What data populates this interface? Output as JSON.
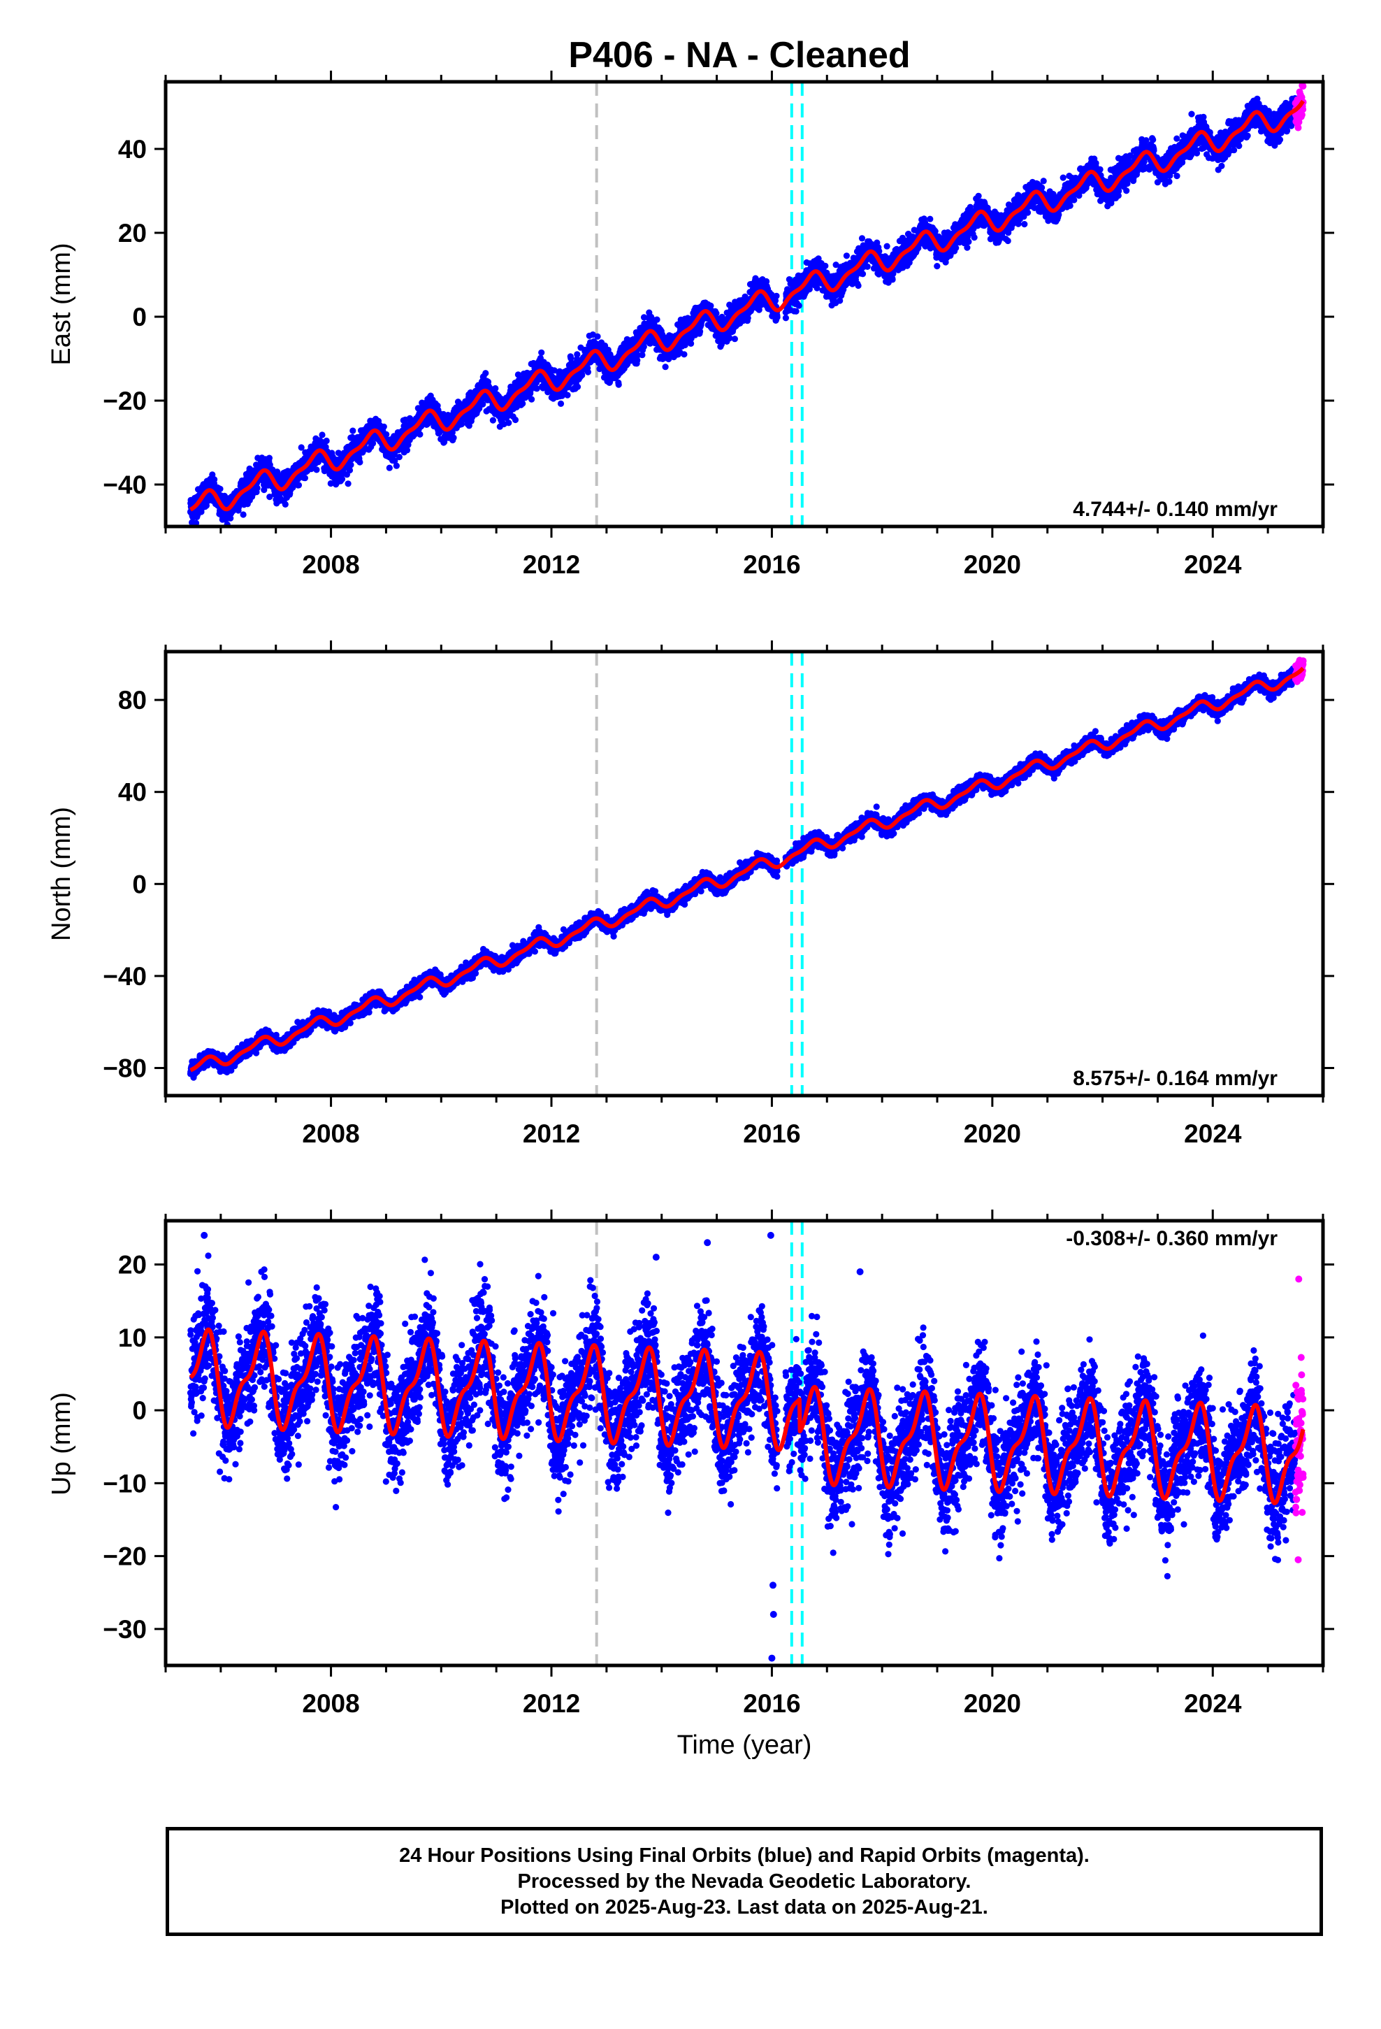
{
  "title": "P406  - NA - Cleaned",
  "xlabel": "Time (year)",
  "footer": {
    "line1": "24 Hour Positions Using Final Orbits (blue) and Rapid Orbits (magenta).",
    "line2": "Processed by the Nevada Geodetic Laboratory.",
    "line3": "Plotted on 2025-Aug-23. Last data on 2025-Aug-21."
  },
  "colors": {
    "final_orbits": "#0000ff",
    "rapid_orbits": "#ff00ff",
    "model": "#ff0000",
    "event_gray": "#c0c0c0",
    "event_cyan": "#00ffff"
  },
  "chart_data": [
    {
      "type": "scatter",
      "ylabel": "East (mm)",
      "xlim": [
        2005.0,
        2026.0
      ],
      "ylim": [
        -50,
        56
      ],
      "x_ticks": [
        2008,
        2012,
        2016,
        2020,
        2024
      ],
      "y_ticks": [
        -40,
        -20,
        0,
        20,
        40
      ],
      "rate_text": "4.744+/- 0.140 mm/yr",
      "rate_position": "bottom-right",
      "data_start": 2005.45,
      "data_end": 2025.64,
      "rapid_start": 2025.5,
      "trend": {
        "intercept_at_start": -46,
        "slope_mm_per_yr": 4.744
      },
      "seasonal_amplitude": 2.5,
      "scatter_sd": 1.6,
      "vertical_lines": [
        {
          "x": 2012.82,
          "color": "gray",
          "style": "dashed"
        },
        {
          "x": 2016.36,
          "color": "cyan",
          "style": "dashed"
        },
        {
          "x": 2016.55,
          "color": "cyan",
          "style": "dashed"
        }
      ]
    },
    {
      "type": "scatter",
      "ylabel": "North (mm)",
      "xlim": [
        2005.0,
        2026.0
      ],
      "ylim": [
        -92,
        101
      ],
      "x_ticks": [
        2008,
        2012,
        2016,
        2020,
        2024
      ],
      "y_ticks": [
        -80,
        -40,
        0,
        40,
        80
      ],
      "rate_text": "8.575+/- 0.164 mm/yr",
      "rate_position": "bottom-right",
      "data_start": 2005.45,
      "data_end": 2025.64,
      "rapid_start": 2025.5,
      "trend": {
        "intercept_at_start": -81,
        "slope_mm_per_yr": 8.575
      },
      "seasonal_amplitude": 2.5,
      "scatter_sd": 1.5,
      "vertical_lines": [
        {
          "x": 2012.82,
          "color": "gray",
          "style": "dashed"
        },
        {
          "x": 2016.36,
          "color": "cyan",
          "style": "dashed"
        },
        {
          "x": 2016.55,
          "color": "cyan",
          "style": "dashed"
        }
      ]
    },
    {
      "type": "scatter",
      "ylabel": "Up (mm)",
      "xlim": [
        2005.0,
        2026.0
      ],
      "ylim": [
        -35,
        26
      ],
      "x_ticks": [
        2008,
        2012,
        2016,
        2020,
        2024
      ],
      "y_ticks": [
        -30,
        -20,
        -10,
        0,
        10,
        20
      ],
      "rate_text": "-0.308+/- 0.360 mm/yr",
      "rate_position": "top-right",
      "data_start": 2005.45,
      "data_end": 2025.64,
      "rapid_start": 2025.5,
      "trend": {
        "intercept_at_start": 4.5,
        "slope_mm_per_yr": -0.308,
        "offset_after_2016_5": -4.5
      },
      "seasonal_amplitude": 5.5,
      "scatter_sd": 3.6,
      "outliers": [
        {
          "x": 2016.0,
          "y": -34
        },
        {
          "x": 2016.02,
          "y": -24
        },
        {
          "x": 2016.03,
          "y": -28
        },
        {
          "x": 2015.98,
          "y": 24
        },
        {
          "x": 2005.7,
          "y": 24
        },
        {
          "x": 2014.83,
          "y": 23
        },
        {
          "x": 2013.9,
          "y": 21
        },
        {
          "x": 2017.6,
          "y": 19
        },
        {
          "x": 2025.55,
          "y": -20.5
        },
        {
          "x": 2025.56,
          "y": 18
        }
      ],
      "vertical_lines": [
        {
          "x": 2012.82,
          "color": "gray",
          "style": "dashed"
        },
        {
          "x": 2016.36,
          "color": "cyan",
          "style": "dashed"
        },
        {
          "x": 2016.55,
          "color": "cyan",
          "style": "dashed"
        }
      ]
    }
  ]
}
